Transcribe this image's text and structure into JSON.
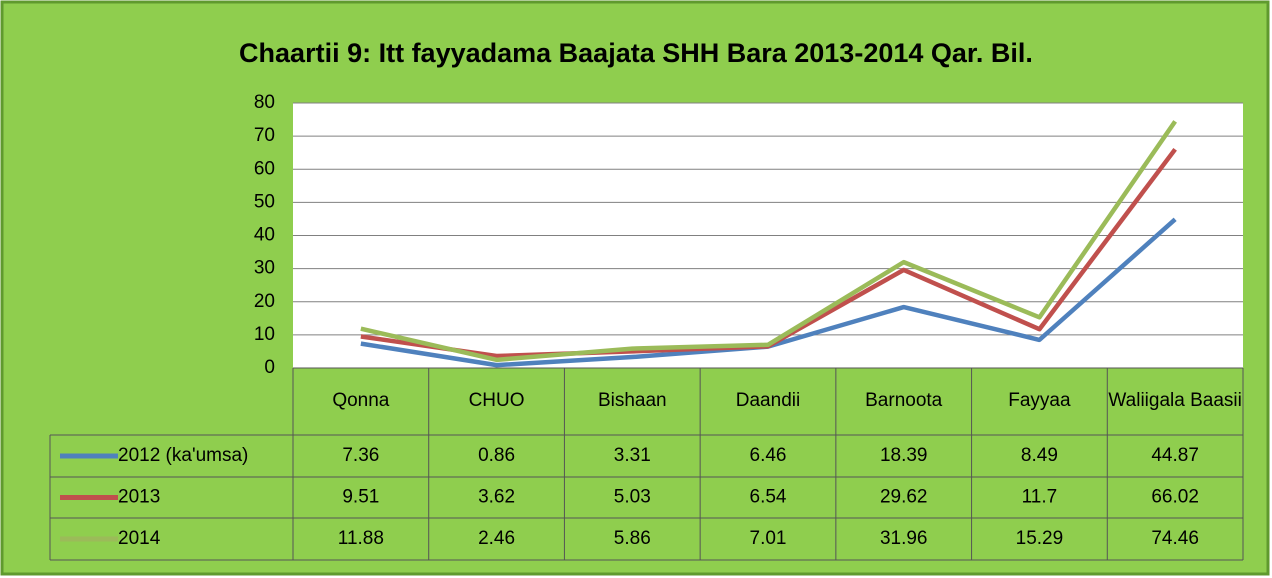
{
  "chart_data": {
    "type": "line",
    "title": "Chaartii 9: Itt fayyadama Baajata SHH Bara 2013-2014 Qar. Bil.",
    "categories": [
      "Qonna",
      "CHUO",
      "Bishaan",
      "Daandii",
      "Barnoota",
      "Fayyaa",
      "Waliigala Baasii"
    ],
    "series": [
      {
        "name": "2012 (ka'umsa)",
        "color": "#4f81bd",
        "values": [
          7.36,
          0.86,
          3.31,
          6.46,
          18.39,
          8.49,
          44.87
        ]
      },
      {
        "name": "2013",
        "color": "#c0504d",
        "values": [
          9.51,
          3.62,
          5.03,
          6.54,
          29.62,
          11.7,
          66.02
        ]
      },
      {
        "name": "2014",
        "color": "#9bbb59",
        "values": [
          11.88,
          2.46,
          5.86,
          7.01,
          31.96,
          15.29,
          74.46
        ]
      }
    ],
    "ylim": [
      0,
      80
    ],
    "yticks": [
      0,
      10,
      20,
      30,
      40,
      50,
      60,
      70,
      80
    ],
    "grid": true
  }
}
